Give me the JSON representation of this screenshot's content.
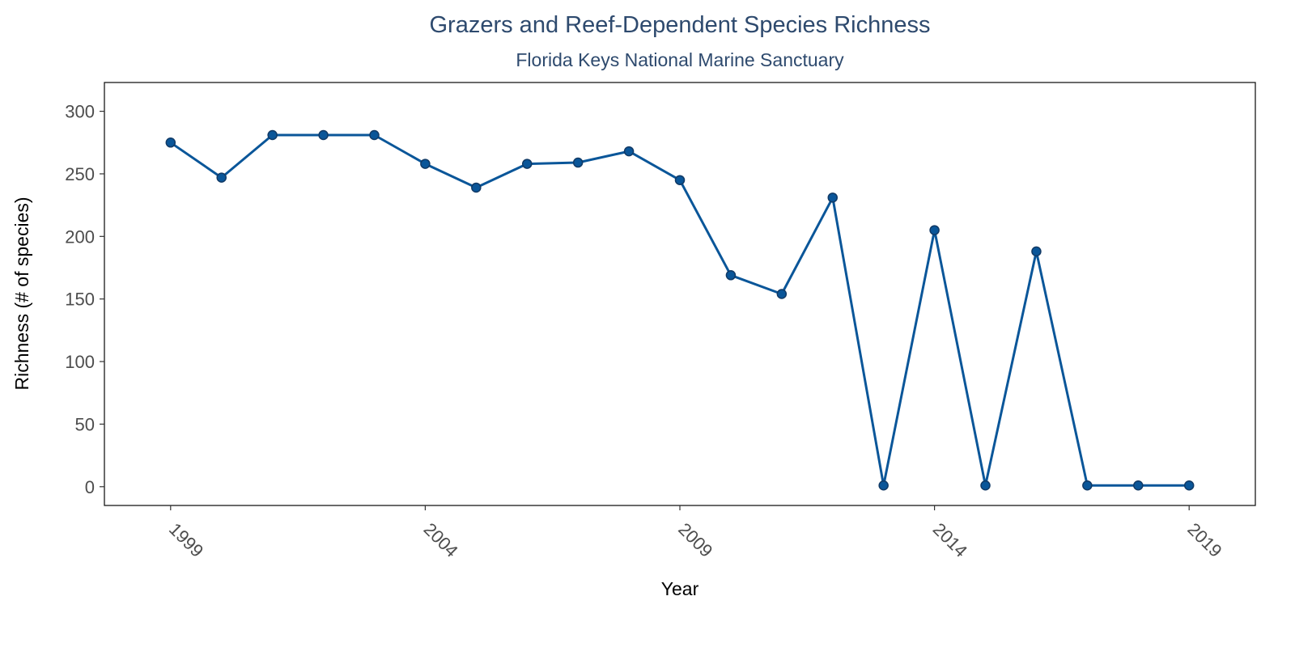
{
  "chart_data": {
    "type": "line",
    "title": "Grazers and Reef-Dependent Species Richness",
    "subtitle": "Florida Keys National Marine Sanctuary",
    "xlabel": "Year",
    "ylabel": "Richness (# of species)",
    "xlim": [
      1997.7,
      2020.3
    ],
    "ylim": [
      -15,
      323
    ],
    "x_ticks": [
      1999,
      2004,
      2009,
      2014,
      2019
    ],
    "y_ticks": [
      0,
      50,
      100,
      150,
      200,
      250,
      300
    ],
    "grid": false,
    "legend": "none",
    "series": [
      {
        "x": [
          1999,
          2000,
          2001,
          2002,
          2003,
          2004,
          2005,
          2006,
          2007,
          2008,
          2009,
          2010,
          2011,
          2012,
          2013,
          2014,
          2015,
          2016,
          2017,
          2018,
          2019
        ],
        "y": [
          275,
          247,
          281,
          281,
          281,
          258,
          239,
          258,
          259,
          268,
          245,
          169,
          154,
          231,
          1,
          205,
          1,
          188,
          1,
          1,
          1
        ]
      }
    ],
    "colors": {
      "line": "#0a5699",
      "point_outline": "#113a66",
      "title": "#2e4a6e",
      "tick_label": "#4d4d4d"
    }
  }
}
